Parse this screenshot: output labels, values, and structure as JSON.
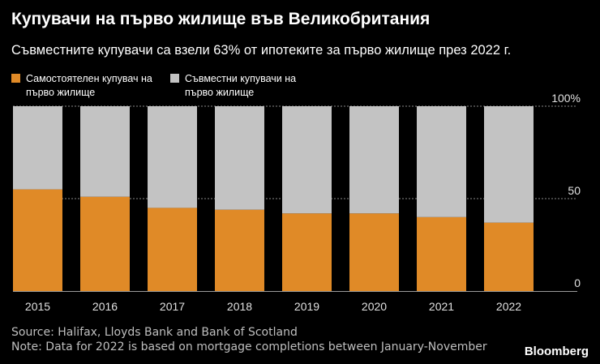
{
  "title": "Купувачи на първо жилище във Великобритания",
  "subtitle": "Съвместните купувачи са взели 63% от ипотеките за първо жилище през 2022 г.",
  "legend": [
    {
      "label": "Самостоятелен купувач на първо жилище",
      "color": "#e08a27"
    },
    {
      "label": "Съвместни купувачи на първо жилище",
      "color": "#c3c3c3"
    }
  ],
  "source": "Source: Halifax, Lloyds Bank and Bank of Scotland",
  "note": "Note: Data for 2022 is based on mortgage completions between January-November",
  "brand": "Bloomberg",
  "chart_data": {
    "type": "bar",
    "stacked": true,
    "categories": [
      "2015",
      "2016",
      "2017",
      "2018",
      "2019",
      "2020",
      "2021",
      "2022"
    ],
    "series": [
      {
        "name": "Самостоятелен купувач на първо жилище",
        "values": [
          55,
          51,
          45,
          44,
          42,
          42,
          40,
          37
        ],
        "color": "#e08a27"
      },
      {
        "name": "Съвместни купувачи на първо жилище",
        "values": [
          45,
          49,
          55,
          56,
          58,
          58,
          60,
          63
        ],
        "color": "#c3c3c3"
      }
    ],
    "ylim": [
      0,
      100
    ],
    "yticks": [
      "0",
      "50",
      "100%"
    ],
    "grid": true,
    "legend_position": "top-left"
  }
}
